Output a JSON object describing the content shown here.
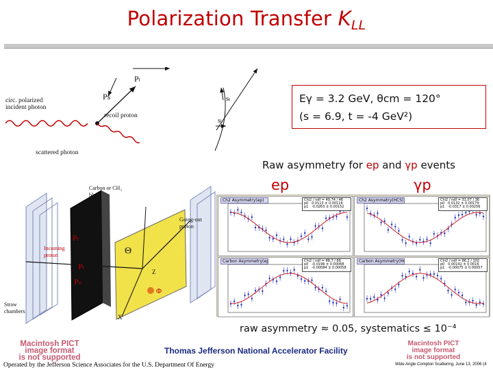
{
  "title": {
    "main": "Polarization Transfer ",
    "k": "K",
    "sub": "LL"
  },
  "kinematics": {
    "line1": "Eγ = 3.2 GeV, θcm = 120°",
    "line2": "(s = 6.9, t = -4 GeV²)"
  },
  "raw_heading": {
    "prefix": "Raw asymmetry for ",
    "ep": "ep",
    "and": " and ",
    "gp": "γp",
    "suffix": " events"
  },
  "labels": {
    "ep": "ep",
    "gp": "γp"
  },
  "raw_summary": "raw asymmetry ≈ 0.05, systematics ≤ 10⁻⁴",
  "footer": {
    "lab": "Thomas Jefferson National Accelerator Facility",
    "left": "Operated by the Jefferson Science Associates for the U.S. Department Of Energy",
    "right": "Wide Angle Compton Scattering, June 13, 2006 (4"
  },
  "pict_placeholder": {
    "line1": "Macintosh PICT",
    "line2": "image format",
    "line3": "is not supported"
  },
  "scatter_diagram": {
    "circ_label": "circ. polarized\nincident photon",
    "recoil_label": "recoil proton",
    "scattered_label": "scattered photon",
    "Ps": "Ps",
    "Pl": "Pₗ",
    "st": "sₜ",
    "sl": "sₗ"
  },
  "polarimeter_diagram": {
    "block_label": "Carbon or CH₂\nblock",
    "incoming": "Incoming\nproton",
    "going_out": "Going-out\nproton",
    "straw": "Straw\nchambers",
    "PT": "Pₜ",
    "PL": "Pₗ",
    "PN": "Pₙ",
    "theta": "Θ",
    "phi": "Φ",
    "z": "Z",
    "x": "X"
  },
  "plot_panels": [
    {
      "title": "Ch2 Asymmetry(ep)",
      "stats": "Chi2 / ndf = 49.74 / 46\np0   0.0113 ± 0.00116\np1   -0.0263 ± 0.00152"
    },
    {
      "title": "Ch2 Asymmetry(HCS)",
      "stats": "Chi2 / ndf = 31.07 / 36\np0   0.0132 ± 0.00179\np1   -0.0317 ± 0.00256"
    },
    {
      "title": "Carbon Asymmetry(ep)",
      "stats": "Chi2 / ndf = 88.7 / 66\np0   -0.0196 ± 0.00068\np1   -0.00084 ± 0.00058"
    },
    {
      "title": "Carbon Asymmetry(HCS)",
      "stats": "Chi2 / ndf = 86.2 / 102\np0   0.00142 ± 0.0016\np1   -0.00075 ± 0.00057"
    }
  ],
  "colors": {
    "title": "#c00000",
    "accent": "#c00000",
    "lab": "#1a2a80"
  }
}
